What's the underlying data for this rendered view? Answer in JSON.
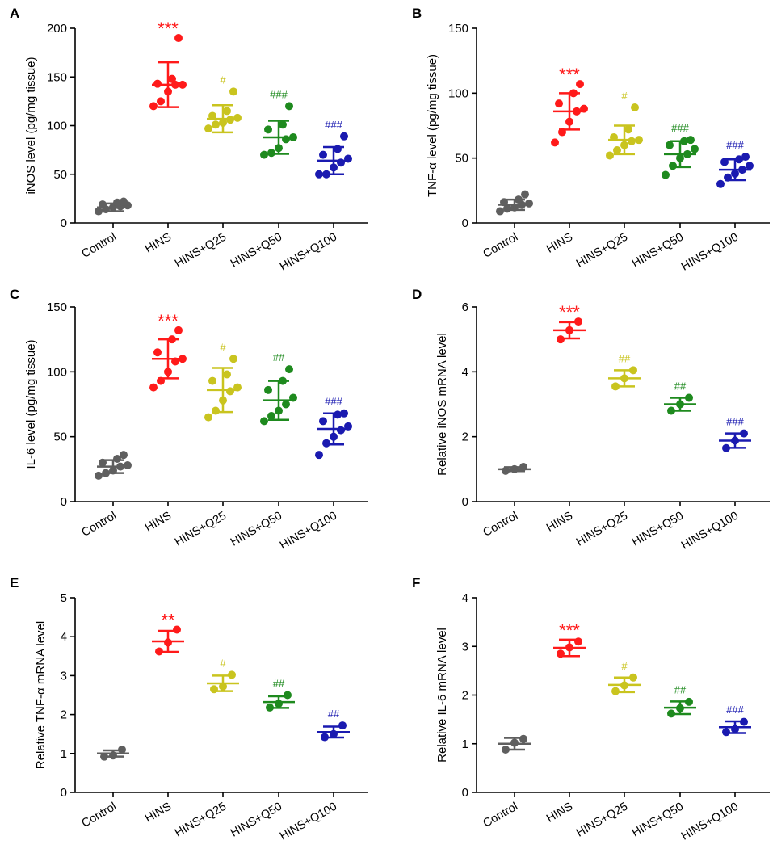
{
  "colors": {
    "Control": "#5f5f5f",
    "HINS": "#ff1a1a",
    "HINS+Q25": "#c9c41f",
    "HINS+Q50": "#1e8a1e",
    "HINS+Q100": "#1a1ab0"
  },
  "chart_data": [
    {
      "panel": "A",
      "type": "scatter",
      "ylabel": "iNOS level (pg/mg tissue)",
      "ylim": [
        0,
        200
      ],
      "yticks": [
        0,
        50,
        100,
        150,
        200
      ],
      "categories": [
        "Control",
        "HINS",
        "HINS+Q25",
        "HINS+Q50",
        "HINS+Q100"
      ],
      "groups": [
        {
          "name": "Control",
          "mean": 16,
          "sd": 4,
          "points": [
            12,
            14,
            16,
            17,
            18,
            19,
            21,
            22
          ],
          "annotation": ""
        },
        {
          "name": "HINS",
          "mean": 142,
          "sd": 23,
          "points": [
            120,
            125,
            135,
            142,
            142,
            143,
            148,
            190
          ],
          "annotation": "***"
        },
        {
          "name": "HINS+Q25",
          "mean": 107,
          "sd": 14,
          "points": [
            97,
            101,
            103,
            106,
            108,
            110,
            115,
            135
          ],
          "annotation": "#"
        },
        {
          "name": "HINS+Q50",
          "mean": 88,
          "sd": 17,
          "points": [
            70,
            72,
            77,
            86,
            88,
            96,
            101,
            120
          ],
          "annotation": "###"
        },
        {
          "name": "HINS+Q100",
          "mean": 64,
          "sd": 14,
          "points": [
            50,
            50,
            57,
            62,
            66,
            70,
            76,
            89
          ],
          "annotation": "###"
        }
      ]
    },
    {
      "panel": "B",
      "type": "scatter",
      "ylabel": "TNF-α level (pg/mg tissue)",
      "ylim": [
        0,
        150
      ],
      "yticks": [
        0,
        50,
        100,
        150
      ],
      "categories": [
        "Control",
        "HINS",
        "HINS+Q25",
        "HINS+Q50",
        "HINS+Q100"
      ],
      "groups": [
        {
          "name": "Control",
          "mean": 14,
          "sd": 4,
          "points": [
            9,
            11,
            12,
            14,
            15,
            16,
            18,
            22
          ],
          "annotation": ""
        },
        {
          "name": "HINS",
          "mean": 86,
          "sd": 14,
          "points": [
            62,
            70,
            78,
            86,
            88,
            92,
            100,
            107
          ],
          "annotation": "***"
        },
        {
          "name": "HINS+Q25",
          "mean": 64,
          "sd": 11,
          "points": [
            52,
            56,
            60,
            63,
            64,
            66,
            72,
            89
          ],
          "annotation": "#"
        },
        {
          "name": "HINS+Q50",
          "mean": 53,
          "sd": 10,
          "points": [
            37,
            44,
            50,
            53,
            57,
            60,
            63,
            64
          ],
          "annotation": "###"
        },
        {
          "name": "HINS+Q100",
          "mean": 41,
          "sd": 8,
          "points": [
            30,
            35,
            38,
            41,
            44,
            47,
            49,
            51
          ],
          "annotation": "###"
        }
      ]
    },
    {
      "panel": "C",
      "type": "scatter",
      "ylabel": "IL-6 level (pg/mg tissue)",
      "ylim": [
        0,
        150
      ],
      "yticks": [
        0,
        50,
        100,
        150
      ],
      "categories": [
        "Control",
        "HINS",
        "HINS+Q25",
        "HINS+Q50",
        "HINS+Q100"
      ],
      "groups": [
        {
          "name": "Control",
          "mean": 27,
          "sd": 5,
          "points": [
            20,
            22,
            24,
            27,
            28,
            30,
            33,
            36
          ],
          "annotation": ""
        },
        {
          "name": "HINS",
          "mean": 110,
          "sd": 15,
          "points": [
            88,
            93,
            100,
            108,
            110,
            115,
            125,
            132
          ],
          "annotation": "***"
        },
        {
          "name": "HINS+Q25",
          "mean": 86,
          "sd": 17,
          "points": [
            65,
            70,
            78,
            85,
            88,
            93,
            98,
            110
          ],
          "annotation": "#"
        },
        {
          "name": "HINS+Q50",
          "mean": 78,
          "sd": 15,
          "points": [
            62,
            66,
            70,
            75,
            80,
            86,
            93,
            102
          ],
          "annotation": "##"
        },
        {
          "name": "HINS+Q100",
          "mean": 56,
          "sd": 12,
          "points": [
            36,
            45,
            50,
            55,
            58,
            62,
            67,
            68
          ],
          "annotation": "###"
        }
      ]
    },
    {
      "panel": "D",
      "type": "scatter",
      "ylabel": "Relative iNOS mRNA level",
      "ylim": [
        0,
        6
      ],
      "yticks": [
        0,
        2,
        4,
        6
      ],
      "categories": [
        "Control",
        "HINS",
        "HINS+Q25",
        "HINS+Q50",
        "HINS+Q100"
      ],
      "groups": [
        {
          "name": "Control",
          "mean": 1.0,
          "sd": 0.06,
          "points": [
            0.95,
            1.0,
            1.07
          ],
          "annotation": ""
        },
        {
          "name": "HINS",
          "mean": 5.28,
          "sd": 0.25,
          "points": [
            5.0,
            5.28,
            5.55
          ],
          "annotation": "***"
        },
        {
          "name": "HINS+Q25",
          "mean": 3.8,
          "sd": 0.25,
          "points": [
            3.55,
            3.8,
            4.05
          ],
          "annotation": "##"
        },
        {
          "name": "HINS+Q50",
          "mean": 3.0,
          "sd": 0.2,
          "points": [
            2.8,
            3.0,
            3.2
          ],
          "annotation": "##"
        },
        {
          "name": "HINS+Q100",
          "mean": 1.88,
          "sd": 0.22,
          "points": [
            1.65,
            1.88,
            2.1
          ],
          "annotation": "###"
        }
      ]
    },
    {
      "panel": "E",
      "type": "scatter",
      "ylabel": "Relative TNF-α mRNA level",
      "ylim": [
        0,
        5
      ],
      "yticks": [
        0,
        1,
        2,
        3,
        4,
        5
      ],
      "categories": [
        "Control",
        "HINS",
        "HINS+Q25",
        "HINS+Q50",
        "HINS+Q100"
      ],
      "groups": [
        {
          "name": "Control",
          "mean": 1.0,
          "sd": 0.08,
          "points": [
            0.92,
            0.95,
            1.1
          ],
          "annotation": ""
        },
        {
          "name": "HINS",
          "mean": 3.88,
          "sd": 0.27,
          "points": [
            3.62,
            3.85,
            4.18
          ],
          "annotation": "**"
        },
        {
          "name": "HINS+Q25",
          "mean": 2.8,
          "sd": 0.2,
          "points": [
            2.65,
            2.72,
            3.02
          ],
          "annotation": "#"
        },
        {
          "name": "HINS+Q50",
          "mean": 2.32,
          "sd": 0.15,
          "points": [
            2.18,
            2.28,
            2.5
          ],
          "annotation": "##"
        },
        {
          "name": "HINS+Q100",
          "mean": 1.55,
          "sd": 0.14,
          "points": [
            1.42,
            1.5,
            1.72
          ],
          "annotation": "##"
        }
      ]
    },
    {
      "panel": "F",
      "type": "scatter",
      "ylabel": "Relative IL-6 mRNA level",
      "ylim": [
        0,
        4
      ],
      "yticks": [
        0,
        1,
        2,
        3,
        4
      ],
      "categories": [
        "Control",
        "HINS",
        "HINS+Q25",
        "HINS+Q50",
        "HINS+Q100"
      ],
      "groups": [
        {
          "name": "Control",
          "mean": 1.0,
          "sd": 0.12,
          "points": [
            0.88,
            1.02,
            1.1
          ],
          "annotation": ""
        },
        {
          "name": "HINS",
          "mean": 2.97,
          "sd": 0.17,
          "points": [
            2.85,
            2.98,
            3.1
          ],
          "annotation": "***"
        },
        {
          "name": "HINS+Q25",
          "mean": 2.21,
          "sd": 0.15,
          "points": [
            2.08,
            2.2,
            2.36
          ],
          "annotation": "#"
        },
        {
          "name": "HINS+Q50",
          "mean": 1.74,
          "sd": 0.13,
          "points": [
            1.62,
            1.73,
            1.86
          ],
          "annotation": "##"
        },
        {
          "name": "HINS+Q100",
          "mean": 1.34,
          "sd": 0.12,
          "points": [
            1.24,
            1.3,
            1.45
          ],
          "annotation": "###"
        }
      ]
    }
  ]
}
